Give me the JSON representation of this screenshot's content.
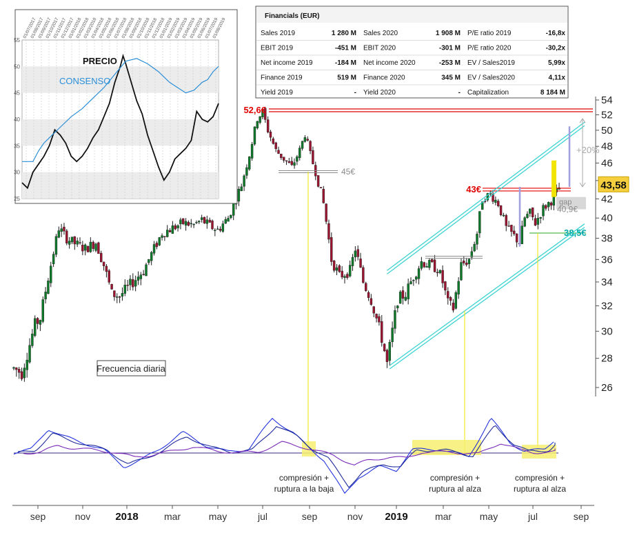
{
  "financials": {
    "title": "Financials (EUR)",
    "rows": [
      [
        {
          "label": "Sales 2019",
          "value": "1 280 M"
        },
        {
          "label": "Sales 2020",
          "value": "1 908 M"
        },
        {
          "label": "P/E ratio 2019",
          "value": "-16,8x"
        }
      ],
      [
        {
          "label": "EBIT 2019",
          "value": "-451 M"
        },
        {
          "label": "EBIT 2020",
          "value": "-301 M"
        },
        {
          "label": "P/E ratio 2020",
          "value": "-30,2x"
        }
      ],
      [
        {
          "label": "Net income 2019",
          "value": "-184 M"
        },
        {
          "label": "Net income 2020",
          "value": "-253 M"
        },
        {
          "label": "EV / Sales2019",
          "value": "5,99x"
        }
      ],
      [
        {
          "label": "Finance 2019",
          "value": "519 M"
        },
        {
          "label": "Finance 2020",
          "value": "345 M"
        },
        {
          "label": "EV / Sales2020",
          "value": "4,11x"
        }
      ],
      [
        {
          "label": "Yield 2019",
          "value": "-"
        },
        {
          "label": "Yield 2020",
          "value": "-"
        },
        {
          "label": "Capitalization",
          "value": "8 184 M"
        }
      ]
    ]
  },
  "chart_data": [
    {
      "type": "candlestick",
      "title": "",
      "frequency_note": "Frecuencia diaria",
      "x_tick_labels": [
        "sep",
        "nov",
        "2018",
        "mar",
        "may",
        "jul",
        "sep",
        "nov",
        "2019",
        "mar",
        "may",
        "jul",
        "sep"
      ],
      "y_tick_labels": [
        26,
        28,
        30,
        32,
        34,
        36,
        38,
        40,
        42,
        44,
        46,
        48,
        50,
        52,
        54
      ],
      "ylim": [
        24.5,
        54.5
      ],
      "y_scale": "log",
      "price_path": [
        [
          0,
          27.3
        ],
        [
          3,
          27.0
        ],
        [
          6,
          29.0
        ],
        [
          8,
          30.5
        ],
        [
          10,
          31.0
        ],
        [
          14,
          35.5
        ],
        [
          17,
          39.0
        ],
        [
          20,
          38.0
        ],
        [
          23,
          37.5
        ],
        [
          27,
          37.0
        ],
        [
          31,
          37.6
        ],
        [
          34,
          35.5
        ],
        [
          37,
          33.0
        ],
        [
          40,
          32.8
        ],
        [
          45,
          34.0
        ],
        [
          49,
          35.0
        ],
        [
          52,
          36.5
        ],
        [
          56,
          38.5
        ],
        [
          60,
          39.0
        ],
        [
          64,
          39.5
        ],
        [
          68,
          39.3
        ],
        [
          71,
          39.8
        ],
        [
          74,
          39.2
        ],
        [
          77,
          38.8
        ],
        [
          81,
          40.0
        ],
        [
          86,
          43.5
        ],
        [
          89,
          47.0
        ],
        [
          92,
          51.5
        ],
        [
          94,
          52.4
        ],
        [
          96,
          50.0
        ],
        [
          99,
          47.5
        ],
        [
          102,
          46.5
        ],
        [
          105,
          45.5
        ],
        [
          108,
          47.5
        ],
        [
          110,
          49.5
        ],
        [
          112,
          47.0
        ],
        [
          114,
          45.0
        ],
        [
          117,
          41.5
        ],
        [
          120,
          36.0
        ],
        [
          123,
          34.5
        ],
        [
          127,
          35.0
        ],
        [
          129,
          37.0
        ],
        [
          132,
          34.0
        ],
        [
          135,
          32.5
        ],
        [
          137,
          31.0
        ],
        [
          139,
          29.5
        ],
        [
          141,
          27.6
        ],
        [
          143,
          30.0
        ],
        [
          145,
          32.5
        ],
        [
          148,
          33.0
        ],
        [
          151,
          34.5
        ],
        [
          154,
          35.8
        ],
        [
          157,
          35.5
        ],
        [
          160,
          35.2
        ],
        [
          162,
          34.0
        ],
        [
          164,
          32.2
        ],
        [
          166,
          31.8
        ],
        [
          169,
          35.5
        ],
        [
          172,
          36.0
        ],
        [
          175,
          38.5
        ],
        [
          177,
          42.0
        ],
        [
          180,
          42.5
        ],
        [
          183,
          41.5
        ],
        [
          186,
          39.0
        ],
        [
          189,
          38.2
        ],
        [
          191,
          37.6
        ],
        [
          193,
          40.0
        ],
        [
          195,
          40.5
        ],
        [
          197,
          39.5
        ],
        [
          200,
          41.0
        ],
        [
          203,
          41.8
        ],
        [
          206,
          43.2
        ]
      ],
      "levels": [
        {
          "label": "52,6€",
          "value": 52.6,
          "color": "#e00000"
        },
        {
          "label": "45€",
          "value": 45.0,
          "color": "#888888"
        },
        {
          "label": "43€",
          "value": 43.0,
          "color": "#e00000"
        },
        {
          "label": "40,9€",
          "value": 40.9,
          "color": "#888888"
        },
        {
          "label": "38,5€",
          "value": 38.5,
          "color": "#00a7a7"
        }
      ],
      "channel": {
        "lower": [
          [
            142,
            27.5
          ],
          [
            213,
            39.0
          ]
        ],
        "upper": [
          [
            141,
            35.0
          ],
          [
            213,
            50.5
          ]
        ],
        "color": "#3cd3d3"
      },
      "last_price_label": "43,58",
      "target_label": "+20%",
      "gap_label": "gap",
      "oscillator_annotations": [
        {
          "label": "compresión +\nruptura a la baja"
        },
        {
          "label": "compresión +\nruptura al alza"
        },
        {
          "label": "compresión +\nruptura al alza"
        }
      ]
    },
    {
      "type": "line",
      "series": [
        {
          "name": "PRECIO",
          "color": "#111111",
          "values": [
            [
              0,
              28.0
            ],
            [
              2,
              27.0
            ],
            [
              4,
              30.0
            ],
            [
              6,
              31.5
            ],
            [
              8,
              33.0
            ],
            [
              10,
              35.0
            ],
            [
              12,
              38.0
            ],
            [
              14,
              37.0
            ],
            [
              16,
              35.5
            ],
            [
              18,
              33.0
            ],
            [
              20,
              32.0
            ],
            [
              22,
              33.0
            ],
            [
              24,
              34.5
            ],
            [
              26,
              36.5
            ],
            [
              28,
              38.0
            ],
            [
              30,
              40.5
            ],
            [
              32,
              43.0
            ],
            [
              34,
              47.0
            ],
            [
              36,
              50.0
            ],
            [
              37,
              52.0
            ],
            [
              38,
              50.5
            ],
            [
              40,
              47.0
            ],
            [
              42,
              43.5
            ],
            [
              44,
              41.0
            ],
            [
              46,
              37.0
            ],
            [
              48,
              34.0
            ],
            [
              50,
              31.0
            ],
            [
              52,
              28.5
            ],
            [
              54,
              30.0
            ],
            [
              56,
              32.5
            ],
            [
              58,
              33.5
            ],
            [
              60,
              34.5
            ],
            [
              62,
              36.0
            ],
            [
              64,
              41.5
            ],
            [
              66,
              40.0
            ],
            [
              68,
              39.5
            ],
            [
              70,
              40.5
            ],
            [
              72,
              43.0
            ]
          ]
        },
        {
          "name": "CONSENSO",
          "color": "#2a8fd8",
          "values": [
            [
              0,
              32.0
            ],
            [
              4,
              32.0
            ],
            [
              6,
              34.0
            ],
            [
              8,
              35.5
            ],
            [
              10,
              36.5
            ],
            [
              14,
              38.5
            ],
            [
              18,
              40.5
            ],
            [
              22,
              42.0
            ],
            [
              26,
              44.0
            ],
            [
              30,
              46.0
            ],
            [
              34,
              48.5
            ],
            [
              38,
              51.0
            ],
            [
              42,
              51.5
            ],
            [
              46,
              50.5
            ],
            [
              50,
              49.0
            ],
            [
              54,
              47.0
            ],
            [
              57,
              46.0
            ],
            [
              60,
              45.0
            ],
            [
              63,
              45.5
            ],
            [
              66,
              47.0
            ],
            [
              68,
              47.5
            ],
            [
              70,
              49.0
            ],
            [
              72,
              50.0
            ]
          ]
        }
      ],
      "x_tick_labels": [
        "01/07/2017",
        "01/08/2017",
        "01/09/2017",
        "01/10/2017",
        "01/11/2017",
        "01/12/2017",
        "01/01/2018",
        "01/02/2018",
        "01/03/2018",
        "01/04/2018",
        "01/05/2018",
        "01/06/2018",
        "01/07/2018",
        "01/08/2018",
        "01/09/2018",
        "01/10/2018",
        "01/11/2018",
        "01/12/2018",
        "01/01/2019",
        "01/02/2019",
        "01/03/2019",
        "01/04/2019",
        "01/05/2019",
        "01/06/2019",
        "01/07/2019",
        "01/08/2019"
      ],
      "y_tick_labels": [
        25,
        30,
        35,
        40,
        45,
        50,
        55
      ],
      "ylim": [
        25,
        55
      ],
      "grid": true
    }
  ]
}
